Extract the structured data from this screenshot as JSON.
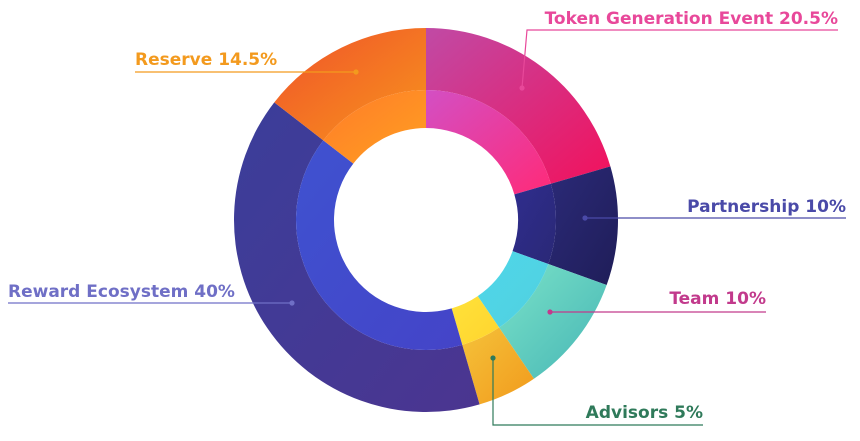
{
  "chart_data": {
    "type": "pie",
    "categories": [
      "Token Generation Event",
      "Partnership",
      "Team",
      "Advisors",
      "Reward Ecosystem",
      "Reserve"
    ],
    "values": [
      20.5,
      10,
      10,
      5,
      40,
      14.5
    ],
    "labels": [
      {
        "name": "Token Generation Event",
        "value": "20.5%",
        "color": "#e8489a"
      },
      {
        "name": "Partnership",
        "value": "10%",
        "color": "#4a4aa8"
      },
      {
        "name": "Team",
        "value": "10%",
        "color": "#c23a8c"
      },
      {
        "name": "Advisors",
        "value": "5%",
        "color": "#2f7a5a"
      },
      {
        "name": "Reward Ecosystem",
        "value": "40%",
        "color": "#6f6fc6"
      },
      {
        "name": "Reserve",
        "value": "14.5%",
        "color": "#f39a1e"
      }
    ],
    "outer_colors": [
      [
        "#c04aa5",
        "#f2115c"
      ],
      [
        "#2b2a78",
        "#1f1d58"
      ],
      [
        "#7ae2c8",
        "#46b5b5"
      ],
      [
        "#f4c23a",
        "#f29a1c"
      ],
      [
        "#3b3e9a",
        "#4b3590"
      ],
      [
        "#f0522a",
        "#f7941d"
      ]
    ],
    "inner_colors": [
      [
        "#d34fc4",
        "#ff2a78"
      ],
      [
        "#2f2d8e",
        "#2a2876"
      ],
      [
        "#4fd7ea",
        "#50d0df"
      ],
      [
        "#ffe23a",
        "#ffd42e"
      ],
      [
        "#3f52d0",
        "#4444c8"
      ],
      [
        "#ff7b2a",
        "#ffa020"
      ]
    ],
    "legend": "callouts"
  }
}
